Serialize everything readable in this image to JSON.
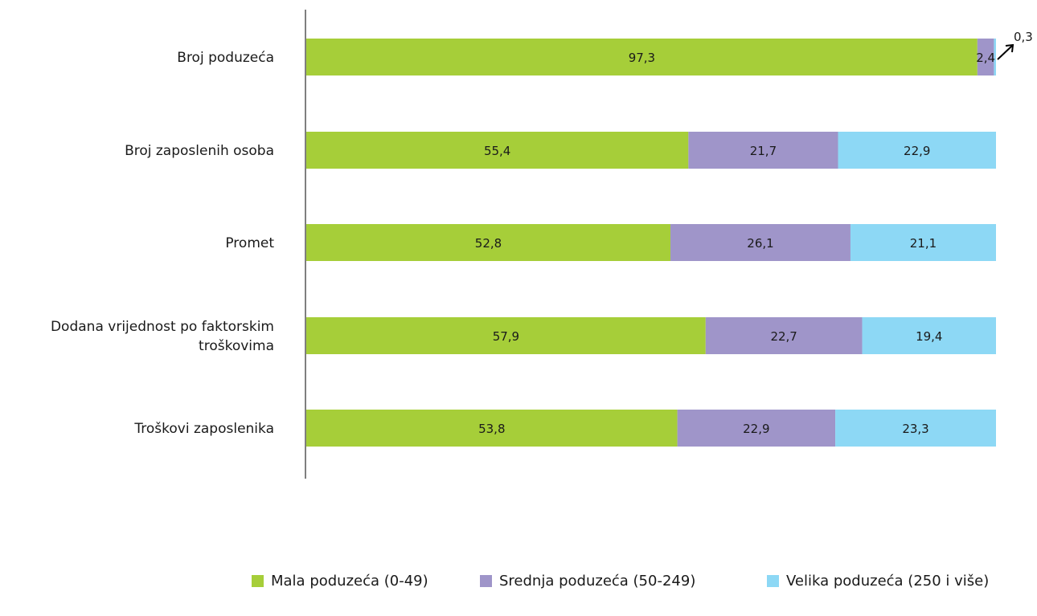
{
  "chart_data": {
    "type": "bar",
    "orientation": "horizontal",
    "stacked": true,
    "categories": [
      [
        "Broj poduzeća"
      ],
      [
        "Broj zaposlenih osoba"
      ],
      [
        "Promet"
      ],
      [
        "Dodana vrijednost po faktorskim",
        "troškovima"
      ],
      [
        "Troškovi zaposlenika"
      ]
    ],
    "series": [
      {
        "name": "Mala poduzeća (0-49)",
        "color": "#a6ce39",
        "values": [
          97.3,
          55.4,
          52.8,
          57.9,
          53.8
        ]
      },
      {
        "name": "Srednja poduzeća (50-249)",
        "color": "#9f95c9",
        "values": [
          2.4,
          21.7,
          26.1,
          22.7,
          22.9
        ]
      },
      {
        "name": "Velika poduzeća (250 i više)",
        "color": "#8dd8f5",
        "values": [
          0.3,
          22.9,
          21.1,
          19.4,
          23.3
        ]
      }
    ],
    "data_labels": [
      [
        "97,3",
        "2,4",
        "0,3"
      ],
      [
        "55,4",
        "21,7",
        "22,9"
      ],
      [
        "52,8",
        "26,1",
        "21,1"
      ],
      [
        "57,9",
        "22,7",
        "19,4"
      ],
      [
        "53,8",
        "22,9",
        "23,3"
      ]
    ],
    "xlim": [
      0,
      100
    ],
    "grid": false,
    "legend_position": "bottom"
  }
}
